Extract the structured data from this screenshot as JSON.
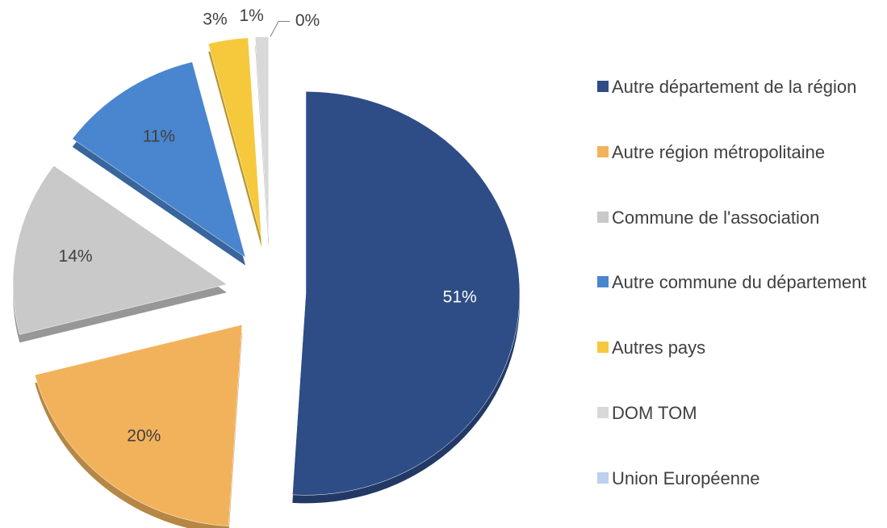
{
  "chart_data": {
    "type": "pie",
    "categories": [
      "Autre département de la région",
      "Autre région métropolitaine",
      "Commune de l'association",
      "Autre commune du département",
      "Autres pays",
      "DOM TOM",
      "Union Européenne"
    ],
    "values": [
      51,
      20,
      14,
      11,
      3,
      1,
      0
    ],
    "value_labels": [
      "51%",
      "20%",
      "14%",
      "11%",
      "3%",
      "1%",
      "0%"
    ],
    "colors": [
      "#2e4c86",
      "#f2b25c",
      "#c9c9c9",
      "#4a86cf",
      "#f6c93c",
      "#d8d8d8",
      "#bcd1ee"
    ],
    "legend": "right"
  }
}
